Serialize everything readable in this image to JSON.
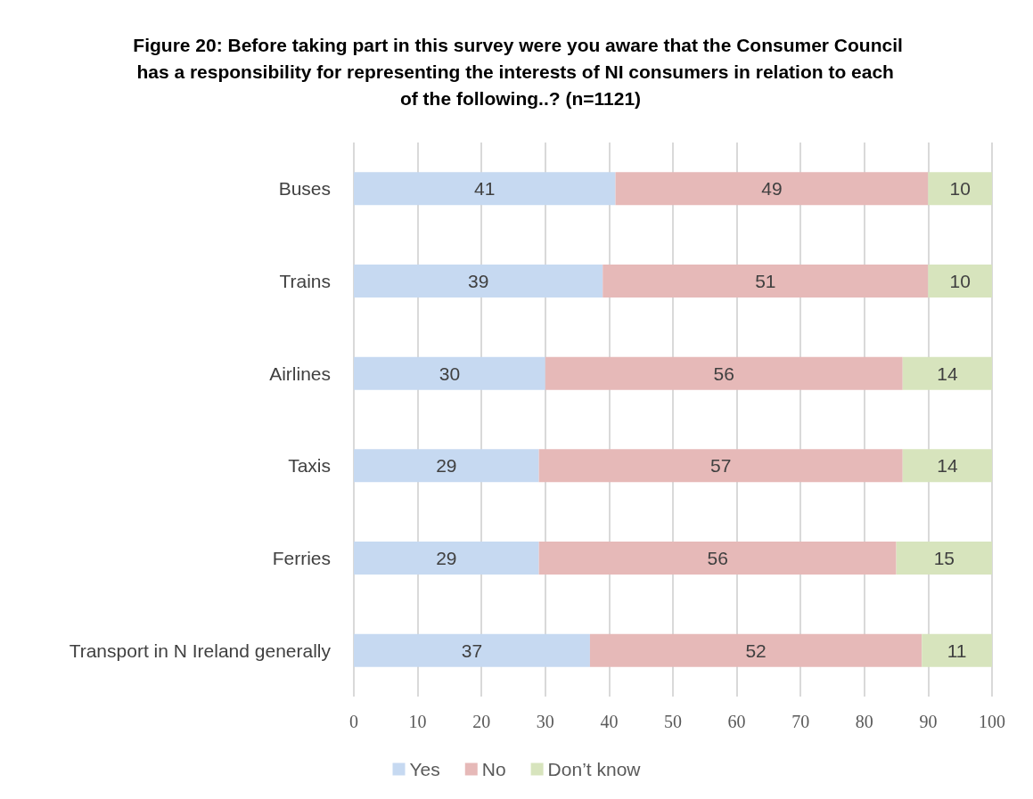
{
  "chart_data": {
    "type": "bar",
    "orientation": "horizontal",
    "stacked": true,
    "title": "Figure 20: Before taking part in this survey were you aware that the Consumer Council has a responsibility for representing the interests of NI consumers in relation to each  of the following..? (n=1121)",
    "categories": [
      "Buses",
      "Trains",
      "Airlines",
      "Taxis",
      "Ferries",
      "Transport in N Ireland generally"
    ],
    "series": [
      {
        "name": "Yes",
        "color": "#c6d9f1",
        "values": [
          41,
          39,
          30,
          29,
          29,
          37
        ]
      },
      {
        "name": "No",
        "color": "#e6b9b8",
        "values": [
          49,
          51,
          56,
          57,
          56,
          52
        ]
      },
      {
        "name": "Don’t know",
        "color": "#d7e4bd",
        "values": [
          10,
          10,
          14,
          14,
          15,
          11
        ]
      }
    ],
    "xlim": [
      0,
      100
    ],
    "xticks": [
      0,
      10,
      20,
      30,
      40,
      50,
      60,
      70,
      80,
      90,
      100
    ],
    "grid": "x",
    "legend": "bottom",
    "data_labels": true
  }
}
